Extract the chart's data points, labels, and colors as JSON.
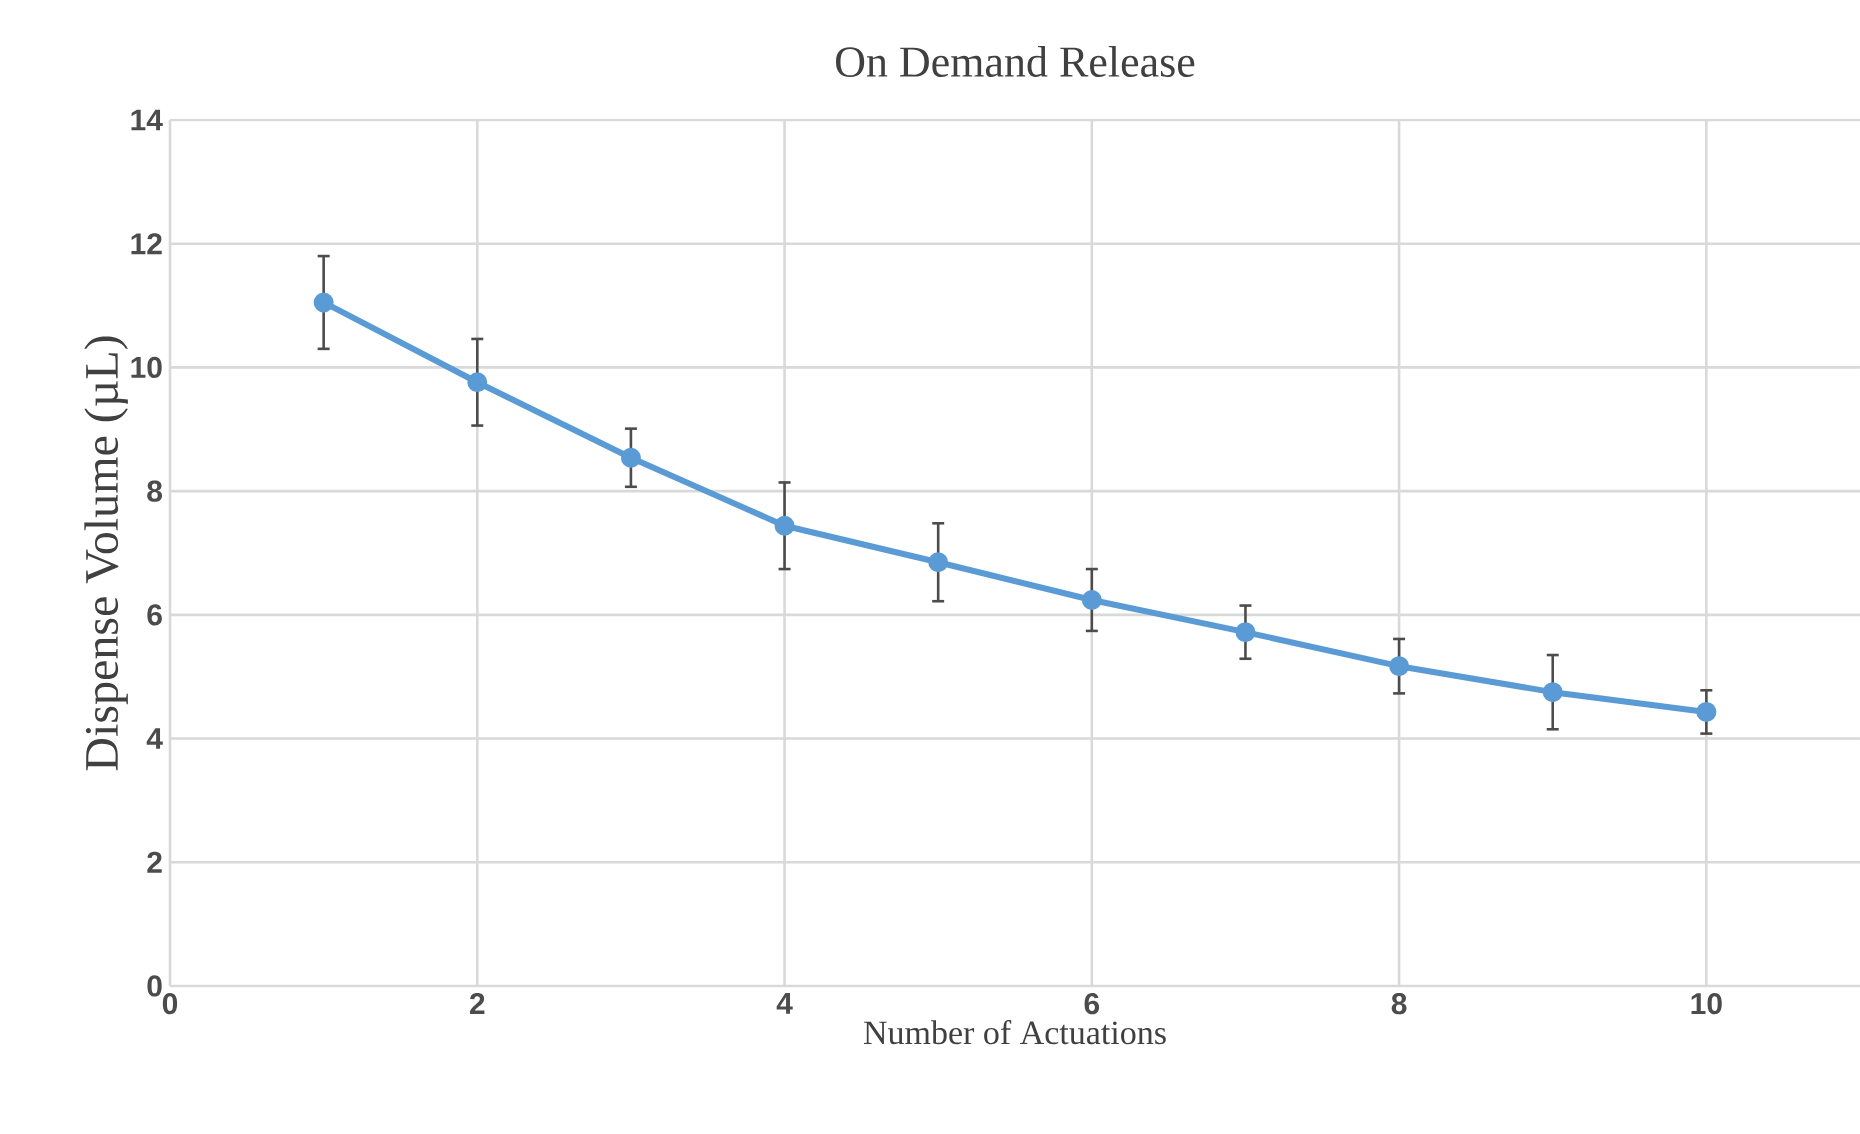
{
  "chart_data": {
    "type": "line",
    "title": "On Demand Release",
    "xlabel": "Number of Actuations",
    "ylabel": "Dispense Volume  (µL)",
    "x": [
      1,
      2,
      3,
      4,
      5,
      6,
      7,
      8,
      9,
      10
    ],
    "series": [
      {
        "color": "#5b9bd5",
        "values": [
          11.05,
          9.76,
          8.54,
          7.44,
          6.85,
          6.24,
          5.72,
          5.17,
          4.75,
          4.43
        ],
        "errors": [
          0.75,
          0.7,
          0.47,
          0.7,
          0.63,
          0.5,
          0.43,
          0.44,
          0.6,
          0.35
        ]
      }
    ],
    "xlim": [
      0,
      11
    ],
    "ylim": [
      0,
      14
    ],
    "xticks": [
      0,
      2,
      4,
      6,
      8,
      10
    ],
    "yticks": [
      0,
      2,
      4,
      6,
      8,
      10,
      12,
      14
    ],
    "grid": true,
    "marker": "circle",
    "line_style": "solid"
  }
}
